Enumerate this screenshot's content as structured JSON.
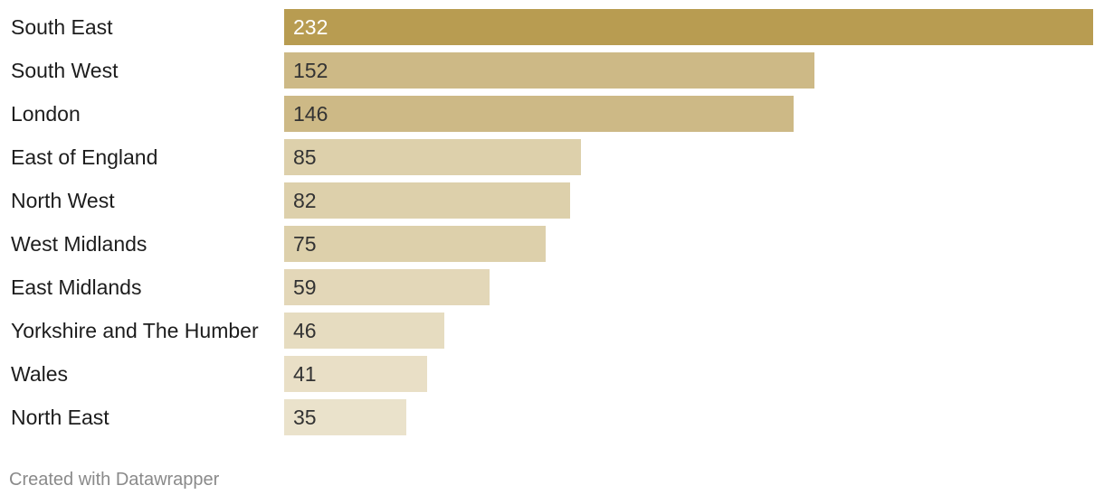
{
  "chart_data": {
    "type": "bar",
    "orientation": "horizontal",
    "categories": [
      "South East",
      "South West",
      "London",
      "East of England",
      "North West",
      "West Midlands",
      "East Midlands",
      "Yorkshire and The Humber",
      "Wales",
      "North East"
    ],
    "values": [
      232,
      152,
      146,
      85,
      82,
      75,
      59,
      46,
      41,
      35
    ],
    "colors": [
      "#b89c51",
      "#cdb986",
      "#cdb986",
      "#ddd0ab",
      "#ddd0ab",
      "#ddd0ab",
      "#e3d7b8",
      "#e6dcc0",
      "#e9dfc6",
      "#eae2cb"
    ],
    "label_colors": [
      "#ffffff",
      "#333333",
      "#333333",
      "#333333",
      "#333333",
      "#333333",
      "#333333",
      "#333333",
      "#333333",
      "#333333"
    ],
    "xlim": [
      0,
      232
    ],
    "title": "",
    "xlabel": "",
    "ylabel": ""
  },
  "footer": {
    "credit": "Created with Datawrapper"
  }
}
